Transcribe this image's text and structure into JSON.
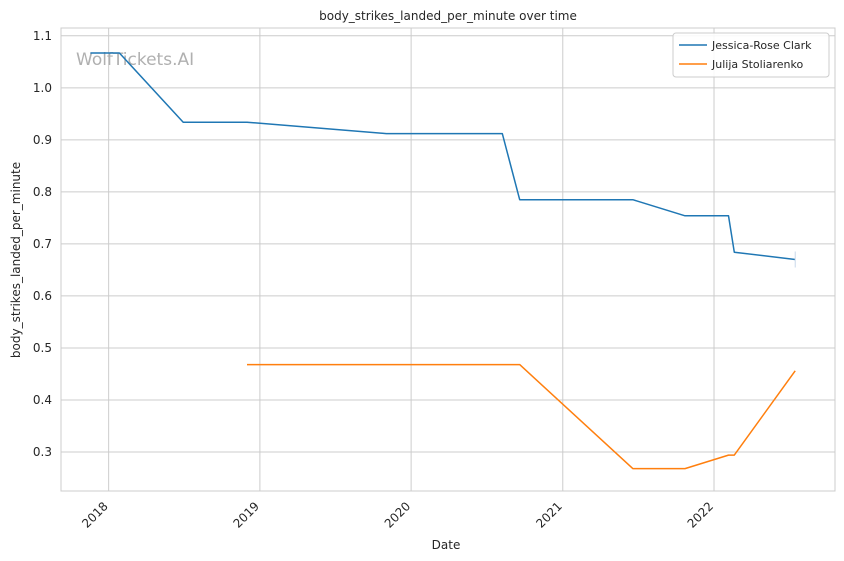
{
  "chart_data": {
    "type": "line",
    "title": "body_strikes_landed_per_minute over time",
    "xlabel": "Date",
    "ylabel": "body_strikes_landed_per_minute",
    "x_ticks": [
      "2018",
      "2019",
      "2020",
      "2021",
      "2022"
    ],
    "y_ticks": [
      0.3,
      0.4,
      0.5,
      0.6,
      0.7,
      0.8,
      0.9,
      1.0,
      1.1
    ],
    "ylim": [
      0.225,
      1.115
    ],
    "xlim": [
      "2017-09-08",
      "2022-10-20"
    ],
    "grid": true,
    "legend_position": "top-right",
    "watermark": "WolfTickets.AI",
    "series": [
      {
        "name": "Jessica-Rose Clark",
        "color": "#1f77b4",
        "points": [
          [
            "2017-11-18",
            1.067
          ],
          [
            "2018-01-27",
            1.067
          ],
          [
            "2018-06-30",
            0.934
          ],
          [
            "2018-12-01",
            0.934
          ],
          [
            "2019-11-02",
            0.912
          ],
          [
            "2020-08-08",
            0.912
          ],
          [
            "2020-09-19",
            0.785
          ],
          [
            "2021-06-19",
            0.785
          ],
          [
            "2021-10-23",
            0.754
          ],
          [
            "2022-02-05",
            0.754
          ],
          [
            "2022-02-19",
            0.684
          ],
          [
            "2022-07-16",
            0.67
          ]
        ]
      },
      {
        "name": "Julija Stoliarenko",
        "color": "#ff7f0e",
        "points": [
          [
            "2018-12-01",
            0.468
          ],
          [
            "2020-09-19",
            0.468
          ],
          [
            "2021-06-19",
            0.268
          ],
          [
            "2021-10-23",
            0.268
          ],
          [
            "2022-02-05",
            0.294
          ],
          [
            "2022-02-19",
            0.294
          ],
          [
            "2022-07-16",
            0.456
          ]
        ]
      }
    ]
  }
}
